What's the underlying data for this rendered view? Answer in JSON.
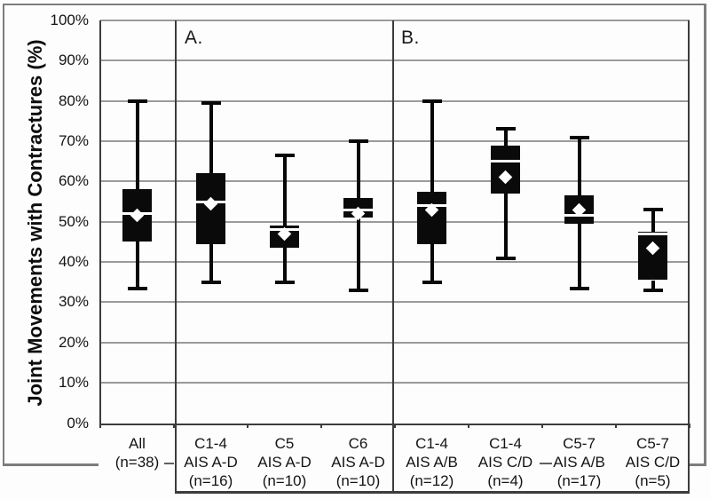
{
  "chart_data": {
    "type": "boxplot",
    "title": "",
    "ylabel": "Joint Movements with Contractures (%)",
    "xlabel": "",
    "ylim": [
      0,
      100
    ],
    "grid": true,
    "y_ticks": [
      0,
      10,
      20,
      30,
      40,
      50,
      60,
      70,
      80,
      90,
      100
    ],
    "y_tick_labels": [
      "0%",
      "10%",
      "20%",
      "30%",
      "40%",
      "50%",
      "60%",
      "70%",
      "80%",
      "90%",
      "100%"
    ],
    "sections": [
      {
        "label": "A.",
        "groups": [
          "C1-4 AIS A-D (n=16)",
          "C5 AIS A-D (n=10)",
          "C6 AIS A-D (n=10)"
        ]
      },
      {
        "label": "B.",
        "groups": [
          "C1-4 AIS A/B (n=12)",
          "C1-4 AIS C/D (n=4)",
          "C5-7 AIS A/B (n=17)",
          "C5-7 AIS C/D (n=5)"
        ]
      }
    ],
    "groups": [
      {
        "label_lines": [
          "All",
          "(n=38)"
        ],
        "section": null,
        "whisker_low": 33.5,
        "q1": 45,
        "median": 52,
        "q3": 58,
        "whisker_high": 80,
        "mean": 51.5
      },
      {
        "label_lines": [
          "C1-4",
          "AIS A-D",
          "(n=16)"
        ],
        "section": "A",
        "whisker_low": 35,
        "q1": 44.5,
        "median": 55,
        "q3": 62,
        "whisker_high": 79.5,
        "mean": 54.5
      },
      {
        "label_lines": [
          "C5",
          "AIS A-D",
          "(n=10)"
        ],
        "section": "A",
        "whisker_low": 35,
        "q1": 43.5,
        "median": 48,
        "q3": 49,
        "whisker_high": 66.5,
        "mean": 47
      },
      {
        "label_lines": [
          "C6",
          "AIS A-D",
          "(n=10)"
        ],
        "section": "A",
        "whisker_low": 33,
        "q1": 51,
        "median": 53,
        "q3": 56,
        "whisker_high": 70,
        "mean": 52
      },
      {
        "label_lines": [
          "C1-4",
          "AIS A/B",
          "(n=12)"
        ],
        "section": "B",
        "whisker_low": 35,
        "q1": 44.5,
        "median": 54,
        "q3": 57.5,
        "whisker_high": 80,
        "mean": 53
      },
      {
        "label_lines": [
          "C1-4",
          "AIS C/D",
          "(n=4)"
        ],
        "section": "B",
        "whisker_low": 41,
        "q1": 57,
        "median": 65,
        "q3": 69,
        "whisker_high": 73,
        "mean": 61
      },
      {
        "label_lines": [
          "C5-7",
          "AIS A/B",
          "(n=17)"
        ],
        "section": "B",
        "whisker_low": 33.5,
        "q1": 49.5,
        "median": 51.5,
        "q3": 56.5,
        "whisker_high": 71,
        "mean": 53
      },
      {
        "label_lines": [
          "C5-7",
          "AIS C/D",
          "(n=5)"
        ],
        "section": "B",
        "whisker_low": 33,
        "q1": 35.5,
        "median": 47,
        "q3": 47.5,
        "whisker_high": 53,
        "mean": 43.5
      }
    ]
  }
}
